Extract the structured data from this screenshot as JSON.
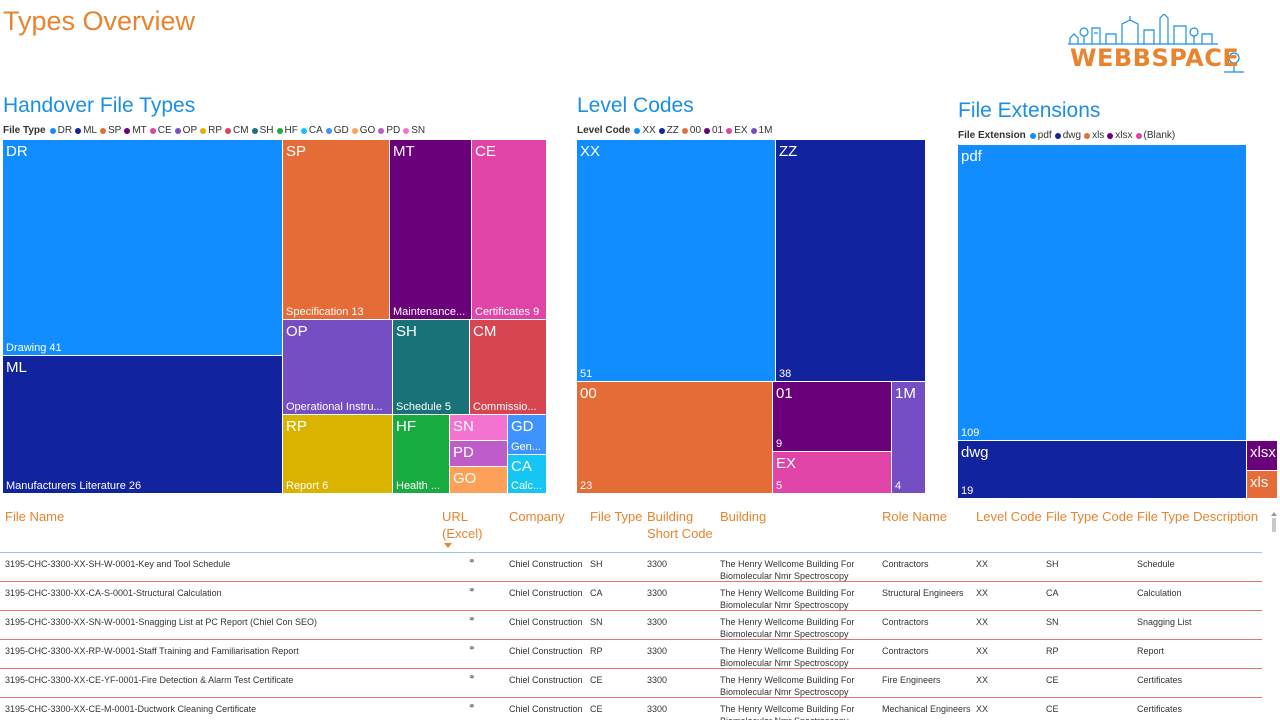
{
  "page_title": "Types Overview",
  "logo": {
    "text": "WEBBSPACE",
    "icon": "city-skyline-icon"
  },
  "colors": {
    "DR": "#118DFF",
    "ML": "#12239E",
    "SP": "#E66C37",
    "MT": "#6B007B",
    "CE": "#E044A7",
    "OP": "#744EC2",
    "RP": "#D9B300",
    "CM": "#D64550",
    "SH": "#197278",
    "HF": "#1AAB40",
    "CA": "#15C6F4",
    "GD": "#4092FF",
    "GO": "#FFA058",
    "PD": "#BE5DC9",
    "SN": "#F472D0"
  },
  "handover": {
    "title": "Handover File Types",
    "legend_title": "File Type",
    "legend": [
      "DR",
      "ML",
      "SP",
      "MT",
      "CE",
      "OP",
      "RP",
      "CM",
      "SH",
      "HF",
      "CA",
      "GD",
      "GO",
      "PD",
      "SN"
    ],
    "tiles": [
      {
        "code": "DR",
        "label": "Drawing 41"
      },
      {
        "code": "ML",
        "label": "Manufacturers Literature 26"
      },
      {
        "code": "SP",
        "label": "Specification 13"
      },
      {
        "code": "MT",
        "label": "Maintenance..."
      },
      {
        "code": "CE",
        "label": "Certificates 9"
      },
      {
        "code": "OP",
        "label": "Operational Instru..."
      },
      {
        "code": "SH",
        "label": "Schedule 5"
      },
      {
        "code": "CM",
        "label": "Commissio..."
      },
      {
        "code": "RP",
        "label": "Report 6"
      },
      {
        "code": "HF",
        "label": "Health ..."
      },
      {
        "code": "SN",
        "label": ""
      },
      {
        "code": "PD",
        "label": ""
      },
      {
        "code": "GO",
        "label": ""
      },
      {
        "code": "GD",
        "label": "Gen..."
      },
      {
        "code": "CA",
        "label": "Calc..."
      }
    ]
  },
  "levels": {
    "title": "Level Codes",
    "legend_title": "Level Code",
    "legend": [
      {
        "name": "XX",
        "color": "#118DFF"
      },
      {
        "name": "ZZ",
        "color": "#12239E"
      },
      {
        "name": "00",
        "color": "#E66C37"
      },
      {
        "name": "01",
        "color": "#6B007B"
      },
      {
        "name": "EX",
        "color": "#E044A7"
      },
      {
        "name": "1M",
        "color": "#744EC2"
      }
    ],
    "tiles": [
      {
        "code": "XX",
        "value": "51"
      },
      {
        "code": "ZZ",
        "value": "38"
      },
      {
        "code": "00",
        "value": "23"
      },
      {
        "code": "01",
        "value": "9"
      },
      {
        "code": "EX",
        "value": "5"
      },
      {
        "code": "1M",
        "value": "4"
      }
    ]
  },
  "extensions": {
    "title": "File Extensions",
    "legend_title": "File Extension",
    "legend": [
      {
        "name": "pdf",
        "color": "#118DFF"
      },
      {
        "name": "dwg",
        "color": "#12239E"
      },
      {
        "name": "xls",
        "color": "#E66C37"
      },
      {
        "name": "xlsx",
        "color": "#6B007B"
      },
      {
        "name": "(Blank)",
        "color": "#E044A7"
      }
    ],
    "tiles": [
      {
        "code": "pdf",
        "value": "109"
      },
      {
        "code": "dwg",
        "value": "19"
      },
      {
        "code": "xlsx",
        "value": ""
      },
      {
        "code": "xls",
        "value": ""
      }
    ]
  },
  "table": {
    "headers": [
      {
        "key": "file_name",
        "label": "File Name"
      },
      {
        "key": "url",
        "label": "URL (Excel)"
      },
      {
        "key": "company",
        "label": "Company"
      },
      {
        "key": "file_type",
        "label": "File Type"
      },
      {
        "key": "building_short",
        "label": "Building Short Code"
      },
      {
        "key": "building",
        "label": "Building"
      },
      {
        "key": "role",
        "label": "Role Name"
      },
      {
        "key": "level",
        "label": "Level Code"
      },
      {
        "key": "ftcode",
        "label": "File Type Code"
      },
      {
        "key": "ftdesc",
        "label": "File Type Description"
      }
    ],
    "rows": [
      {
        "file_name": "3195-CHC-3300-XX-SH-W-0001-Key and Tool Schedule",
        "url": "link-icon",
        "company": "Chiel Construction",
        "file_type": "SH",
        "building_short": "3300",
        "building": "The Henry Wellcome Building For Biomolecular Nmr Spectroscopy",
        "role": "Contractors",
        "level": "XX",
        "ftcode": "SH",
        "ftdesc": "Schedule"
      },
      {
        "file_name": "3195-CHC-3300-XX-CA-S-0001-Structural Calculation",
        "url": "link-icon",
        "company": "Chiel Construction",
        "file_type": "CA",
        "building_short": "3300",
        "building": "The Henry Wellcome Building For Biomolecular Nmr Spectroscopy",
        "role": "Structural Engineers",
        "level": "XX",
        "ftcode": "CA",
        "ftdesc": "Calculation"
      },
      {
        "file_name": "3195-CHC-3300-XX-SN-W-0001-Snagging List at PC Report (Chiel Con SEO)",
        "url": "link-icon",
        "company": "Chiel Construction",
        "file_type": "SN",
        "building_short": "3300",
        "building": "The Henry Wellcome Building For Biomolecular Nmr Spectroscopy",
        "role": "Contractors",
        "level": "XX",
        "ftcode": "SN",
        "ftdesc": "Snagging List"
      },
      {
        "file_name": "3195-CHC-3300-XX-RP-W-0001-Staff Training and Familiarisation Report",
        "url": "link-icon",
        "company": "Chiel Construction",
        "file_type": "RP",
        "building_short": "3300",
        "building": "The Henry Wellcome Building For Biomolecular Nmr Spectroscopy",
        "role": "Contractors",
        "level": "XX",
        "ftcode": "RP",
        "ftdesc": "Report"
      },
      {
        "file_name": "3195-CHC-3300-XX-CE-YF-0001-Fire Detection & Alarm Test Certificate",
        "url": "link-icon",
        "company": "Chiel Construction",
        "file_type": "CE",
        "building_short": "3300",
        "building": "The Henry Wellcome Building For Biomolecular Nmr Spectroscopy",
        "role": "Fire Engineers",
        "level": "XX",
        "ftcode": "CE",
        "ftdesc": "Certificates"
      },
      {
        "file_name": "3195-CHC-3300-XX-CE-M-0001-Ductwork Cleaning Certificate",
        "url": "link-icon",
        "company": "Chiel Construction",
        "file_type": "CE",
        "building_short": "3300",
        "building": "The Henry Wellcome Building For Biomolecular Nmr Spectroscopy",
        "role": "Mechanical Engineers",
        "level": "XX",
        "ftcode": "CE",
        "ftdesc": "Certificates"
      }
    ]
  }
}
